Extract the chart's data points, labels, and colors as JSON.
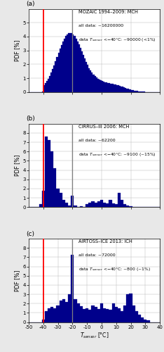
{
  "title_a": "MOZAIC 1994–2009: MCH",
  "text_a1": "all data: ~16200000",
  "text_a2": "data $T_{sensor}$ <−40°C: ~90000 (<1%)",
  "title_b": "CIRRUS–III 2006: MCH",
  "text_b1": "all data: ~62200",
  "text_b2": "data $T_{sensor}$ <−40°C: ~9100 (~15%)",
  "title_c": "AIRTOSS–ICE 2013: ICH",
  "text_c1": "all data: ~72000",
  "text_c2": "data $T_{sensor}$ <−40°C: ~800 (~1%)",
  "xlim": [
    -50,
    40
  ],
  "xticks": [
    -50,
    -40,
    -30,
    -20,
    -10,
    0,
    10,
    20,
    30,
    40
  ],
  "xlabel": "$T_{sensor}$ [°C]",
  "ylabel": "PDF [%]",
  "red_line_x": -40,
  "grey_line_x": -20,
  "bar_color": "#00008B",
  "bin_width": 1,
  "background_color": "#e8e8e8",
  "panel_bg": "#ffffff",
  "ylim_a": [
    0,
    6
  ],
  "yticks_a": [
    0,
    1,
    2,
    3,
    4,
    5
  ],
  "ylim_b": [
    0,
    9
  ],
  "yticks_b": [
    0,
    1,
    2,
    3,
    4,
    5,
    6,
    7,
    8
  ],
  "ylim_c": [
    0,
    9
  ],
  "yticks_c": [
    0,
    1,
    2,
    3,
    4,
    5,
    6,
    7,
    8
  ]
}
